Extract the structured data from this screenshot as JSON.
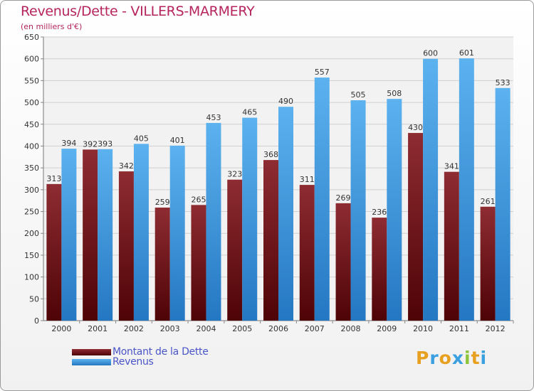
{
  "chart_data": {
    "type": "bar",
    "title": "Revenus/Dette - VILLERS-MARMERY",
    "subtitle": "(en milliers d'€)",
    "categories": [
      "2000",
      "2001",
      "2002",
      "2003",
      "2004",
      "2005",
      "2006",
      "2007",
      "2008",
      "2009",
      "2010",
      "2011",
      "2012"
    ],
    "series": [
      {
        "name": "Montant de la Dette",
        "color": "#7a1a1e",
        "values": [
          313,
          392,
          342,
          259,
          265,
          323,
          368,
          311,
          269,
          236,
          430,
          341,
          261
        ]
      },
      {
        "name": "Revenus",
        "color": "#3b9be0",
        "values": [
          394,
          393,
          405,
          401,
          453,
          465,
          490,
          557,
          505,
          508,
          600,
          601,
          533
        ]
      }
    ],
    "ylim": [
      0,
      650
    ],
    "yticks": [
      0,
      50,
      100,
      150,
      200,
      250,
      300,
      350,
      400,
      450,
      500,
      550,
      600,
      650
    ],
    "grid": true,
    "legend": "bottom-left"
  },
  "logo": {
    "letters": [
      "P",
      "r",
      "o",
      "x",
      "i",
      "t",
      "i"
    ],
    "colors": [
      "#e8a020",
      "#3aa0e0",
      "#e8a020",
      "#3aa0e0",
      "#8cc43c",
      "#e8a020",
      "#3aa0e0"
    ]
  }
}
